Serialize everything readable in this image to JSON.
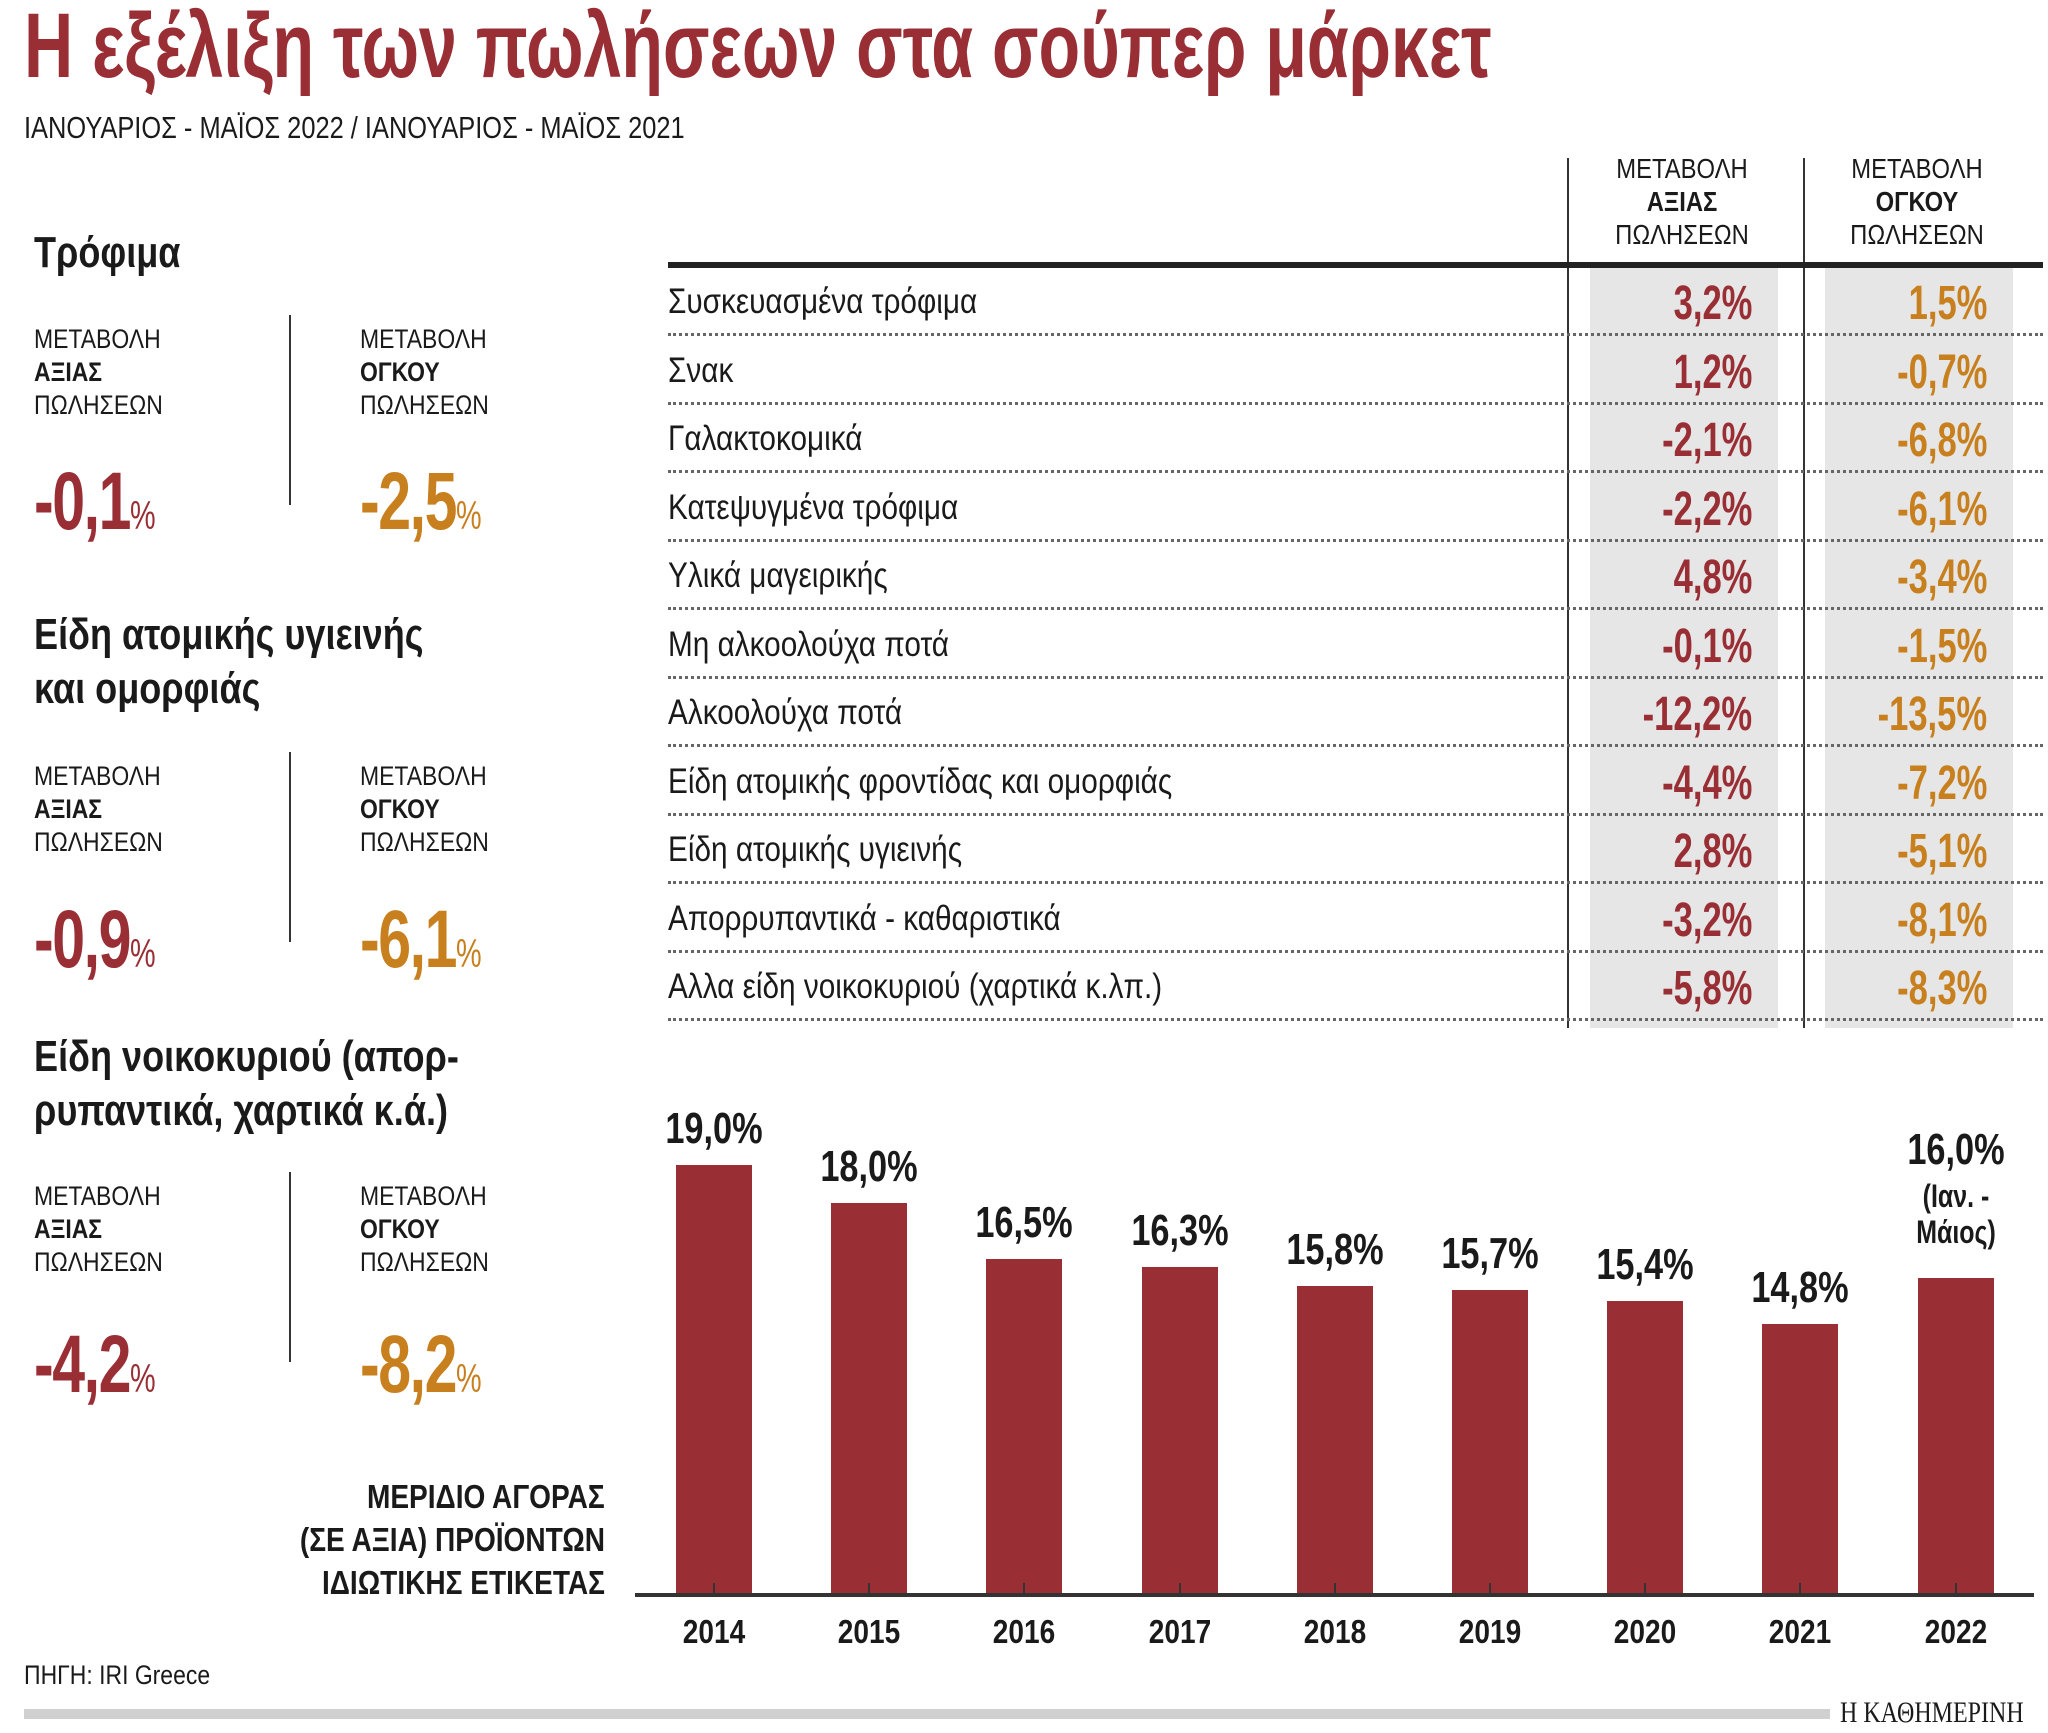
{
  "title": "Η εξέλιξη των πωλήσεων στα σούπερ μάρκετ",
  "subtitle": "ΙΑΝΟΥΑΡΙΟΣ - ΜΑΪΟΣ 2022 / ΙΑΝΟΥΑΡΙΟΣ - ΜΑΪΟΣ 2021",
  "colors": {
    "value": "#992e35",
    "volume": "#c8801e",
    "column_bg": "#e6e6e6"
  },
  "labels": {
    "l1": "ΜΕΤΑΒΟΛΗ",
    "value": "ΑΞΙΑΣ",
    "volume": "ΟΓΚΟΥ",
    "l3": "ΠΩΛΗΣΕΩΝ",
    "pct": "%"
  },
  "summary": [
    {
      "title1": "Τρόφιμα",
      "title2": "",
      "value": "-0,1",
      "volume": "-2,5"
    },
    {
      "title1": "Είδη ατομικής υγιεινής",
      "title2": "και ομορφιάς",
      "value": "-0,9",
      "volume": "-6,1"
    },
    {
      "title1": "Είδη νοικοκυριού (απορ-",
      "title2": "ρυπαντικά, χαρτικά κ.ά.)",
      "value": "-4,2",
      "volume": "-8,2"
    }
  ],
  "table": {
    "rows": [
      {
        "name": "Συσκευασμένα τρόφιμα",
        "value": "3,2%",
        "volume": "1,5%"
      },
      {
        "name": "Σνακ",
        "value": "1,2%",
        "volume": "-0,7%"
      },
      {
        "name": "Γαλακτοκομικά",
        "value": "-2,1%",
        "volume": "-6,8%"
      },
      {
        "name": "Κατεψυγμένα τρόφιμα",
        "value": "-2,2%",
        "volume": "-6,1%"
      },
      {
        "name": "Υλικά μαγειρικής",
        "value": "4,8%",
        "volume": "-3,4%"
      },
      {
        "name": "Μη αλκοολούχα ποτά",
        "value": "-0,1%",
        "volume": "-1,5%"
      },
      {
        "name": "Αλκοολούχα ποτά",
        "value": "-12,2%",
        "volume": "-13,5%"
      },
      {
        "name": "Είδη ατομικής φροντίδας και ομορφιάς",
        "value": "-4,4%",
        "volume": "-7,2%"
      },
      {
        "name": "Είδη ατομικής υγιεινής",
        "value": "2,8%",
        "volume": "-5,1%"
      },
      {
        "name": "Απορρυπαντικά - καθαριστικά",
        "value": "-3,2%",
        "volume": "-8,1%"
      },
      {
        "name": "Αλλα είδη νοικοκυριού (χαρτικά κ.λπ.)",
        "value": "-5,8%",
        "volume": "-8,3%"
      }
    ]
  },
  "chart_data": {
    "type": "bar",
    "title_lines": [
      "ΜΕΡΙΔΙΟ ΑΓΟΡΑΣ",
      "(ΣΕ ΑΞΙΑ) ΠΡΟΪΟΝΤΩΝ",
      "ΙΔΙΩΤΙΚΗΣ ΕΤΙΚΕΤΑΣ"
    ],
    "categories": [
      "2014",
      "2015",
      "2016",
      "2017",
      "2018",
      "2019",
      "2020",
      "2021",
      "2022"
    ],
    "values": [
      19.0,
      18.0,
      16.5,
      16.3,
      15.8,
      15.7,
      15.4,
      14.8,
      16.0
    ],
    "data_labels": [
      "19,0%",
      "18,0%",
      "16,5%",
      "16,3%",
      "15,8%",
      "15,7%",
      "15,4%",
      "14,8%",
      "16,0%"
    ],
    "last_label_note": [
      "(Ιαν. -",
      "Μάιος)"
    ],
    "ylim": [
      7.6,
      19.0
    ],
    "grid": false,
    "color": "#992e35"
  },
  "source": "ΠΗΓΗ: IRI Greece",
  "brand": "Η ΚΑΘΗΜΕΡΙΝΗ"
}
